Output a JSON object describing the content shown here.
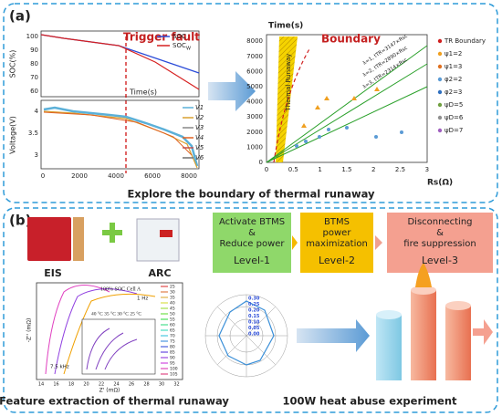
{
  "panel_a": {
    "label": "(a)",
    "soc_chart": {
      "y_label": "SOC(%)",
      "yticks": [
        "100",
        "90",
        "80",
        "70",
        "60"
      ],
      "annotation": "Trigger fault",
      "legend": [
        {
          "base": "SOC",
          "sub": ""
        },
        {
          "base": "SOC",
          "sub": "W"
        }
      ],
      "x_label": "Time(s)"
    },
    "voltage_chart": {
      "y_label": "Voltage(V)",
      "yticks": [
        "4",
        "3.5",
        "3"
      ],
      "xticks": [
        "0",
        "2000",
        "4000",
        "6000",
        "8000"
      ],
      "legend": [
        "V1",
        "V2",
        "V3",
        "V4",
        "V5",
        "V6"
      ]
    },
    "boundary_chart": {
      "title": "Time(s)",
      "annotation": "Boundary",
      "region": "Thermal Runaway",
      "x_label": "Rs(Ω)",
      "yticks": [
        "0",
        "1000",
        "2000",
        "3000",
        "4000",
        "5000",
        "6000",
        "7000",
        "8000"
      ],
      "xticks": [
        "0",
        "0.5",
        "1",
        "1.5",
        "2",
        "2.5",
        "3"
      ],
      "equations": [
        "λ=1, tTR=3147×Rsc",
        "λ=2, tTR=2890×Rsc",
        "λ=3, tTR=2314×Rsc"
      ],
      "legend": [
        "TR Boundary",
        "ψ1=2",
        "ψ1=3",
        "φ2=2",
        "φ2=3",
        "ψD=5",
        "ψD=6",
        "ψD=7"
      ]
    },
    "caption": "Explore the boundary of thermal runaway"
  },
  "panel_b": {
    "label": "(b)",
    "device_labels": [
      "EIS",
      "ARC"
    ],
    "levels": [
      {
        "lines": [
          "Activate BTMS",
          "&",
          "Reduce power"
        ],
        "level": "Level-1"
      },
      {
        "lines": [
          "BTMS",
          "power",
          "maximization"
        ],
        "level": "Level-2"
      },
      {
        "lines": [
          "Disconnecting",
          "&",
          "fire suppression"
        ],
        "level": "Level-3"
      }
    ],
    "nyquist": {
      "title": "100% SOC Cell A",
      "temps": "40 °C 35 °C 30 °C 25 °C",
      "x_label": "Z' (mΩ)",
      "y_label": "-Z'' (mΩ)",
      "high_freq": "7.5 kHz",
      "low_freq": "1 Hz",
      "xticks": [
        "14",
        "16",
        "18",
        "20",
        "22",
        "24",
        "26",
        "28",
        "30",
        "32"
      ],
      "legend": [
        "25",
        "30",
        "35",
        "40",
        "45",
        "50",
        "55",
        "60",
        "65",
        "70",
        "75",
        "80",
        "85",
        "90",
        "95",
        "100",
        "105"
      ]
    },
    "radar": {
      "ticks": [
        "0.30",
        "0.25",
        "0.20",
        "0.15",
        "0.10",
        "0.05",
        "0.00"
      ]
    },
    "captions": [
      "Feature extraction of thermal runaway",
      "100W heat abuse experiment"
    ]
  }
}
